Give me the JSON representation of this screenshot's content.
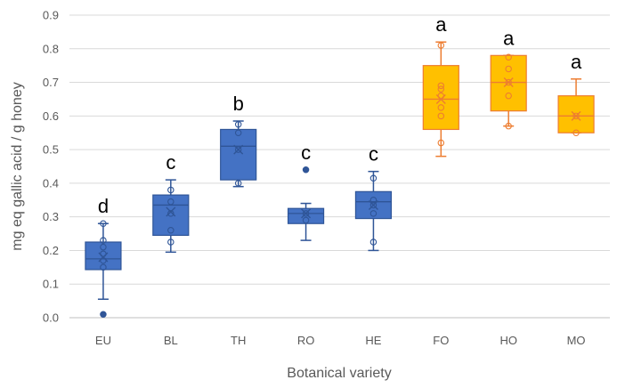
{
  "chart_data": {
    "type": "box",
    "title": "",
    "xlabel": "Botanical variety",
    "ylabel": "mg eq gallic acid / g honey",
    "ylim": [
      0,
      0.9
    ],
    "yticks": [
      "0.0",
      "0.1",
      "0.2",
      "0.3",
      "0.4",
      "0.5",
      "0.6",
      "0.7",
      "0.8",
      "0.9"
    ],
    "grid": true,
    "colors": {
      "blue_fill": "#4472C4",
      "blue_stroke": "#2F5597",
      "orange_fill": "#FFC000",
      "orange_stroke": "#ED7D31"
    },
    "categories": [
      {
        "name": "EU",
        "group": "blue",
        "letter": "d",
        "min": 0.055,
        "q1": 0.143,
        "median": 0.175,
        "q3": 0.225,
        "max": 0.28,
        "mean": 0.18,
        "points": [
          0.01,
          0.15,
          0.17,
          0.19,
          0.21,
          0.23,
          0.28
        ]
      },
      {
        "name": "BL",
        "group": "blue",
        "letter": "c",
        "min": 0.195,
        "q1": 0.245,
        "median": 0.335,
        "q3": 0.365,
        "max": 0.41,
        "mean": 0.315,
        "points": [
          0.225,
          0.26,
          0.31,
          0.345,
          0.38
        ]
      },
      {
        "name": "TH",
        "group": "blue",
        "letter": "b",
        "min": 0.39,
        "q1": 0.41,
        "median": 0.51,
        "q3": 0.56,
        "max": 0.585,
        "mean": 0.5,
        "points": [
          0.4,
          0.5,
          0.55,
          0.575
        ]
      },
      {
        "name": "RO",
        "group": "blue",
        "letter": "c",
        "min": 0.23,
        "q1": 0.28,
        "median": 0.31,
        "q3": 0.325,
        "max": 0.34,
        "mean": 0.31,
        "points": [
          0.29,
          0.31,
          0.44
        ]
      },
      {
        "name": "HE",
        "group": "blue",
        "letter": "c",
        "min": 0.2,
        "q1": 0.295,
        "median": 0.345,
        "q3": 0.375,
        "max": 0.435,
        "mean": 0.335,
        "points": [
          0.225,
          0.31,
          0.335,
          0.35,
          0.415
        ]
      },
      {
        "name": "FO",
        "group": "orange",
        "letter": "a",
        "min": 0.48,
        "q1": 0.56,
        "median": 0.65,
        "q3": 0.75,
        "max": 0.82,
        "mean": 0.65,
        "points": [
          0.52,
          0.6,
          0.625,
          0.66,
          0.68,
          0.69,
          0.81
        ]
      },
      {
        "name": "HO",
        "group": "orange",
        "letter": "a",
        "min": 0.57,
        "q1": 0.615,
        "median": 0.7,
        "q3": 0.78,
        "max": 0.78,
        "mean": 0.7,
        "points": [
          0.57,
          0.66,
          0.7,
          0.74,
          0.775
        ]
      },
      {
        "name": "MO",
        "group": "orange",
        "letter": "a",
        "min": 0.55,
        "q1": 0.55,
        "median": 0.6,
        "q3": 0.66,
        "max": 0.71,
        "mean": 0.6,
        "points": [
          0.55,
          0.6
        ]
      }
    ]
  }
}
